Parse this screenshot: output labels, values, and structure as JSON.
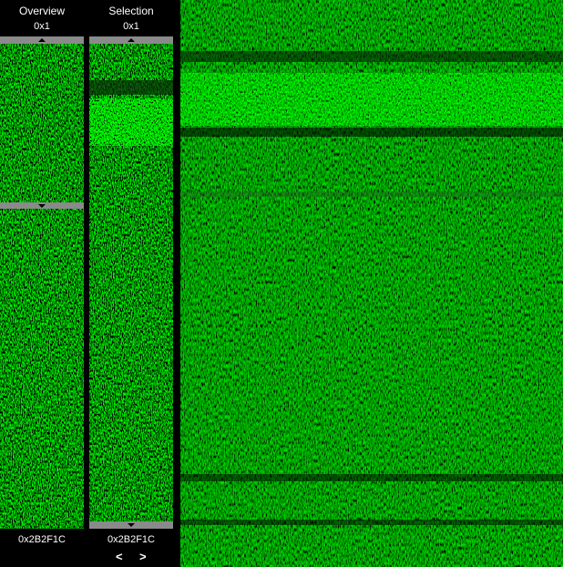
{
  "overview": {
    "title": "Overview",
    "start": "0x1",
    "end": "0x2B2F1C"
  },
  "selection": {
    "title": "Selection",
    "start": "0x1",
    "end": "0x2B2F1C",
    "prev": "<",
    "next": ">"
  }
}
